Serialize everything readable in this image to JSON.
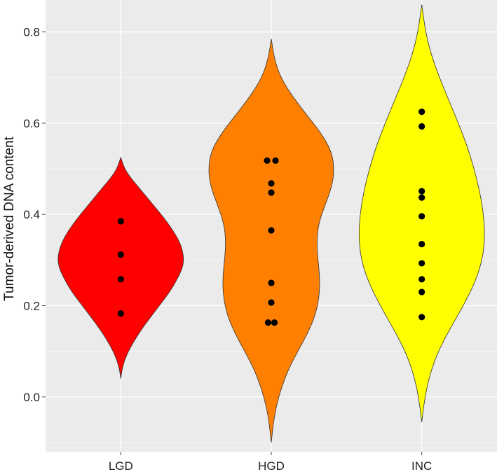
{
  "chart_data": {
    "type": "violin",
    "title": "",
    "xlabel": "",
    "ylabel": "Tumor-derived DNA content",
    "categories": [
      "LGD",
      "HGD",
      "INC"
    ],
    "ylim": [
      -0.12,
      0.87
    ],
    "yticks": [
      0.0,
      0.2,
      0.4,
      0.6,
      0.8
    ],
    "ytick_labels": [
      "0.0",
      "0.2",
      "0.4",
      "0.6",
      "0.8"
    ],
    "grid": true,
    "background": "#EBEBEB",
    "series": [
      {
        "category": "LGD",
        "color": "#FF0000",
        "range": [
          0.04,
          0.525
        ],
        "density": [
          [
            0.04,
            0
          ],
          [
            0.06,
            0.02
          ],
          [
            0.08,
            0.06
          ],
          [
            0.1,
            0.12
          ],
          [
            0.12,
            0.2
          ],
          [
            0.14,
            0.29
          ],
          [
            0.16,
            0.39
          ],
          [
            0.18,
            0.5
          ],
          [
            0.2,
            0.61
          ],
          [
            0.22,
            0.72
          ],
          [
            0.24,
            0.82
          ],
          [
            0.26,
            0.9
          ],
          [
            0.28,
            0.97
          ],
          [
            0.3,
            1.0
          ],
          [
            0.32,
            0.98
          ],
          [
            0.34,
            0.93
          ],
          [
            0.36,
            0.85
          ],
          [
            0.38,
            0.75
          ],
          [
            0.4,
            0.64
          ],
          [
            0.42,
            0.52
          ],
          [
            0.44,
            0.4
          ],
          [
            0.46,
            0.28
          ],
          [
            0.48,
            0.16
          ],
          [
            0.5,
            0.06
          ],
          [
            0.525,
            0
          ]
        ],
        "points": [
          [
            0,
            0.385
          ],
          [
            0,
            0.312
          ],
          [
            0,
            0.258
          ],
          [
            0,
            0.183
          ]
        ]
      },
      {
        "category": "HGD",
        "color": "#FF8000",
        "range": [
          -0.1,
          0.785
        ],
        "density": [
          [
            -0.1,
            0
          ],
          [
            -0.06,
            0.03
          ],
          [
            -0.02,
            0.08
          ],
          [
            0.02,
            0.16
          ],
          [
            0.06,
            0.27
          ],
          [
            0.1,
            0.42
          ],
          [
            0.14,
            0.58
          ],
          [
            0.18,
            0.7
          ],
          [
            0.22,
            0.76
          ],
          [
            0.26,
            0.77
          ],
          [
            0.3,
            0.74
          ],
          [
            0.34,
            0.72
          ],
          [
            0.38,
            0.75
          ],
          [
            0.42,
            0.85
          ],
          [
            0.46,
            0.96
          ],
          [
            0.5,
            1.0
          ],
          [
            0.54,
            0.95
          ],
          [
            0.58,
            0.78
          ],
          [
            0.62,
            0.55
          ],
          [
            0.66,
            0.33
          ],
          [
            0.7,
            0.15
          ],
          [
            0.74,
            0.05
          ],
          [
            0.785,
            0
          ]
        ],
        "points": [
          [
            -0.4,
            0.518
          ],
          [
            0.4,
            0.518
          ],
          [
            0,
            0.468
          ],
          [
            0,
            0.448
          ],
          [
            0,
            0.365
          ],
          [
            0,
            0.25
          ],
          [
            0,
            0.207
          ],
          [
            -0.3,
            0.163
          ],
          [
            0.3,
            0.163
          ]
        ]
      },
      {
        "category": "INC",
        "color": "#FFFF00",
        "range": [
          -0.055,
          0.86
        ],
        "density": [
          [
            -0.055,
            0
          ],
          [
            0.0,
            0.05
          ],
          [
            0.05,
            0.13
          ],
          [
            0.1,
            0.26
          ],
          [
            0.15,
            0.45
          ],
          [
            0.2,
            0.66
          ],
          [
            0.25,
            0.84
          ],
          [
            0.3,
            0.96
          ],
          [
            0.35,
            1.0
          ],
          [
            0.4,
            0.98
          ],
          [
            0.45,
            0.92
          ],
          [
            0.5,
            0.83
          ],
          [
            0.55,
            0.72
          ],
          [
            0.6,
            0.58
          ],
          [
            0.65,
            0.43
          ],
          [
            0.7,
            0.28
          ],
          [
            0.75,
            0.15
          ],
          [
            0.8,
            0.06
          ],
          [
            0.86,
            0
          ]
        ],
        "points": [
          [
            0,
            0.625
          ],
          [
            0,
            0.593
          ],
          [
            0,
            0.451
          ],
          [
            0,
            0.437
          ],
          [
            0,
            0.396
          ],
          [
            0,
            0.335
          ],
          [
            0,
            0.293
          ],
          [
            0,
            0.258
          ],
          [
            0,
            0.23
          ],
          [
            0,
            0.175
          ]
        ]
      }
    ]
  }
}
